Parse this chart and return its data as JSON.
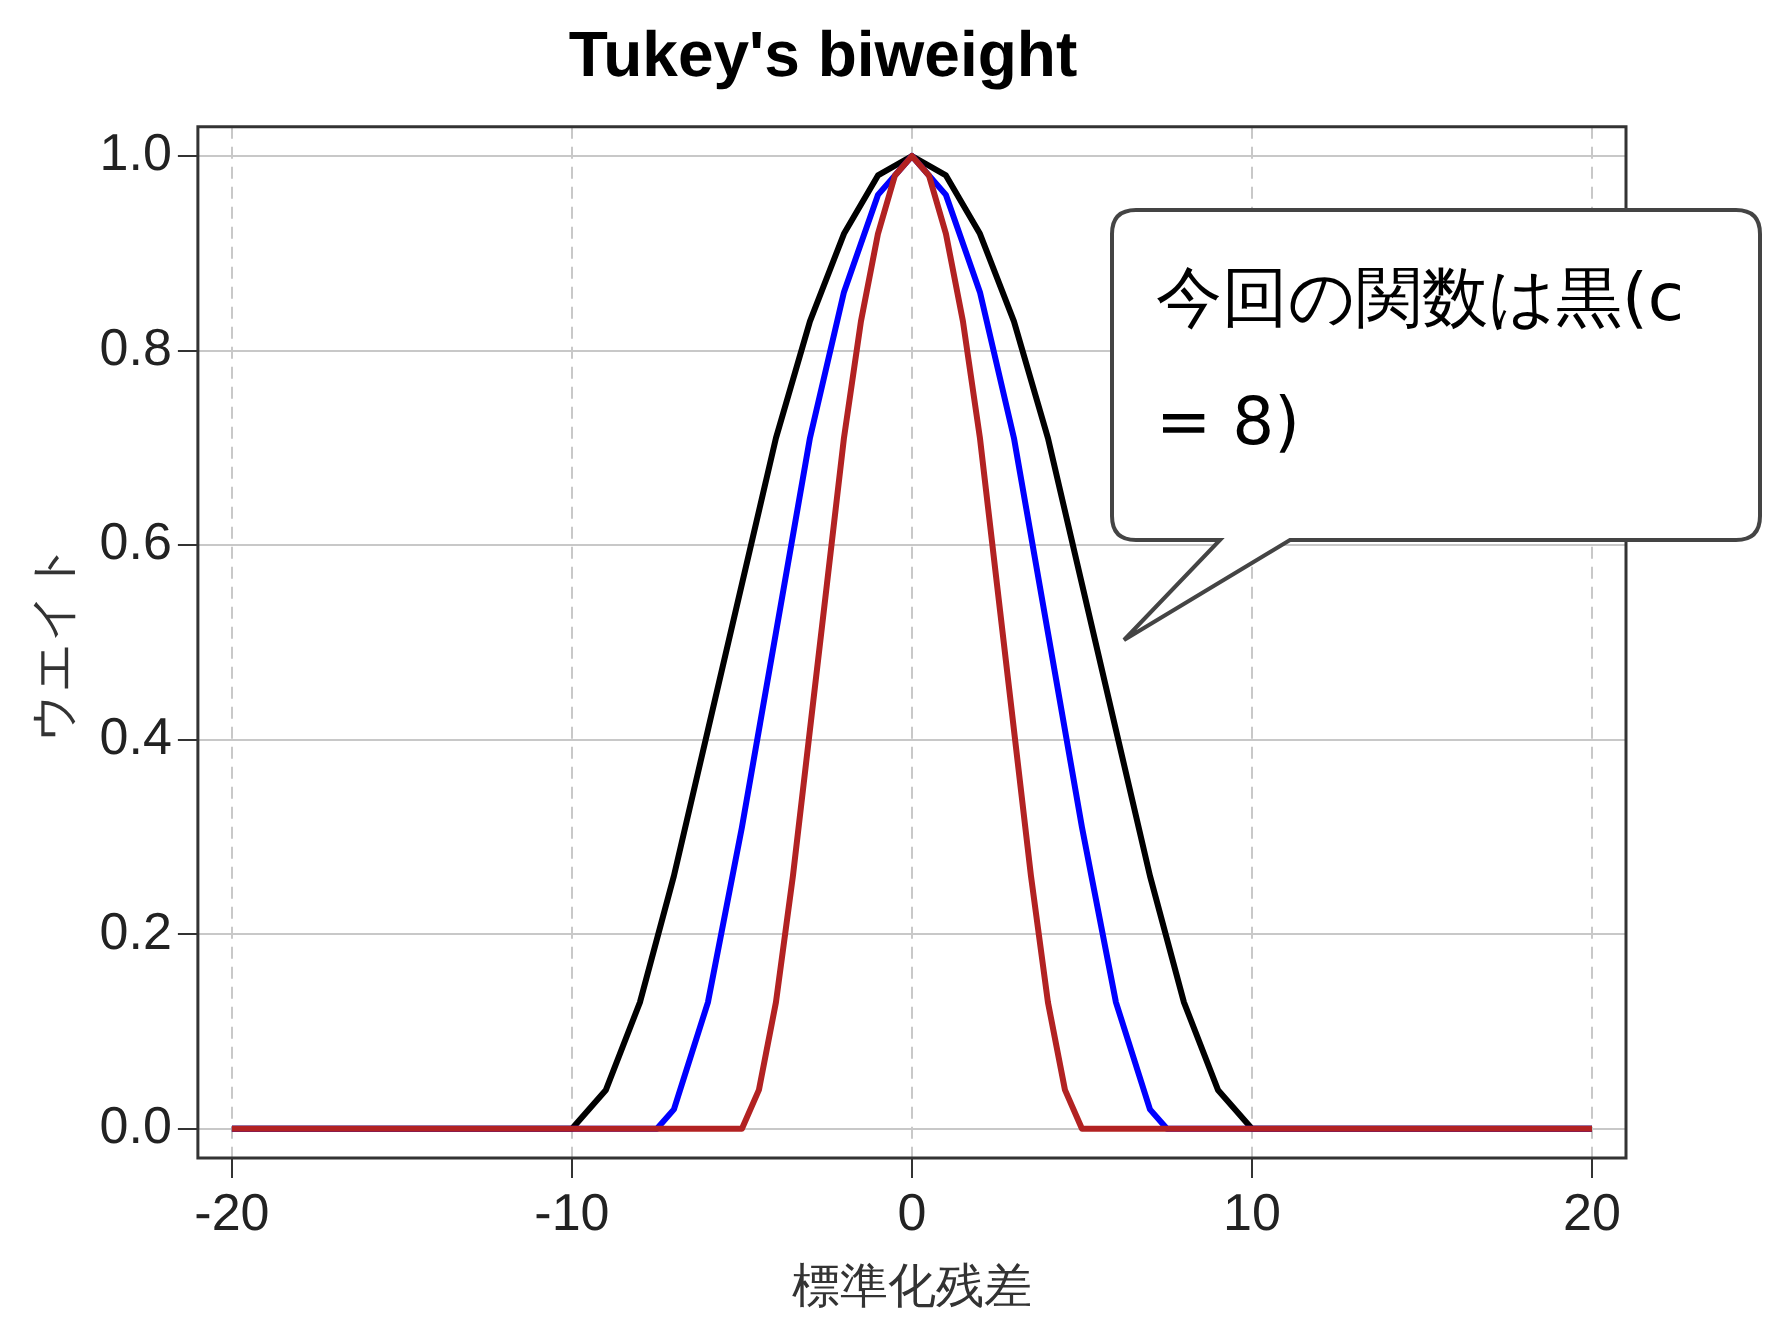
{
  "chart_data": {
    "type": "line",
    "title": "Tukey's biweight",
    "xlabel": "標準化残差",
    "ylabel": "ウエイト",
    "xlim": [
      -21,
      21
    ],
    "xticks": [
      -20,
      -10,
      0,
      10,
      20
    ],
    "ylim": [
      -0.03,
      1.03
    ],
    "yticks": [
      {
        "value": 0,
        "label": "0.0"
      },
      {
        "value": 0.2,
        "label": "0.2"
      },
      {
        "value": 0.4,
        "label": "0.4"
      },
      {
        "value": 0.6,
        "label": "0.6"
      },
      {
        "value": 0.8,
        "label": "0.8"
      },
      {
        "value": 1,
        "label": "1.0"
      }
    ],
    "grid": true,
    "legend": false,
    "marker": "none",
    "line_style": "solid",
    "annotations": [
      "今回の関数は黒(c = 8)"
    ],
    "series": [
      {
        "color": "#b22222",
        "x": [
          -20,
          -5,
          -4.5,
          -4,
          -3.5,
          -3,
          -2.5,
          -2,
          -1.5,
          -1,
          -0.5,
          0,
          0.5,
          1,
          1.5,
          2,
          2.5,
          3,
          3.5,
          4,
          4.5,
          5,
          20
        ],
        "values": [
          0,
          0,
          0.04,
          0.13,
          0.26,
          0.41,
          0.56,
          0.71,
          0.83,
          0.92,
          0.98,
          1,
          0.98,
          0.92,
          0.83,
          0.71,
          0.56,
          0.41,
          0.26,
          0.13,
          0.04,
          0,
          0
        ]
      },
      {
        "color": "#0000ff",
        "x": [
          -20,
          -7.5,
          -7,
          -6,
          -5,
          -4,
          -3,
          -2,
          -1,
          0,
          1,
          2,
          3,
          4,
          5,
          6,
          7,
          7.5,
          20
        ],
        "values": [
          0,
          0,
          0.02,
          0.13,
          0.31,
          0.51,
          0.71,
          0.86,
          0.96,
          1,
          0.96,
          0.86,
          0.71,
          0.51,
          0.31,
          0.13,
          0.02,
          0,
          0
        ]
      },
      {
        "color": "#000000",
        "x": [
          -20,
          -10,
          -9,
          -8,
          -7,
          -6,
          -5,
          -4,
          -3,
          -2,
          -1,
          0,
          1,
          2,
          3,
          4,
          5,
          6,
          7,
          8,
          9,
          10,
          20
        ],
        "values": [
          0,
          0,
          0.04,
          0.13,
          0.26,
          0.41,
          0.56,
          0.71,
          0.83,
          0.92,
          0.98,
          1,
          0.98,
          0.92,
          0.83,
          0.71,
          0.56,
          0.41,
          0.26,
          0.13,
          0.04,
          0,
          0
        ]
      }
    ]
  }
}
